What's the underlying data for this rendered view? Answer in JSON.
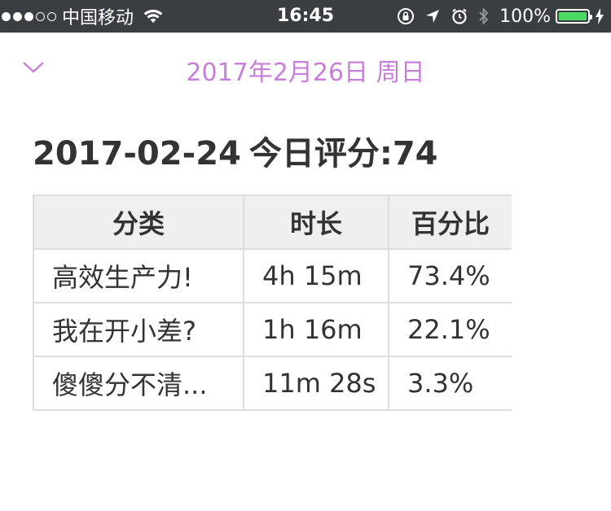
{
  "status_bar": {
    "carrier": "中国移动",
    "time": "16:45",
    "battery_pct": "100%",
    "battery_color": "#4cd964",
    "icons": [
      "signal-dots-icon",
      "wifi-icon",
      "rotation-lock-icon",
      "location-arrow-icon",
      "alarm-icon",
      "bluetooth-icon",
      "battery-icon",
      "charging-bolt-icon"
    ]
  },
  "header": {
    "date_title": "2017年2月26日 周日",
    "accent_color": "#c77fd8",
    "collapse_icon": "chevron-down-icon"
  },
  "summary": {
    "date": "2017-02-24",
    "score_label": "今日评分:74"
  },
  "table": {
    "columns": [
      "分类",
      "时长",
      "百分比"
    ],
    "rows": [
      {
        "category": "高效生产力!",
        "duration": "4h 15m",
        "percent": "73.4%"
      },
      {
        "category": "我在开小差?",
        "duration": "1h 16m",
        "percent": "22.1%"
      },
      {
        "category": "傻傻分不清...",
        "duration": "11m 28s",
        "percent": "3.3%"
      }
    ]
  }
}
